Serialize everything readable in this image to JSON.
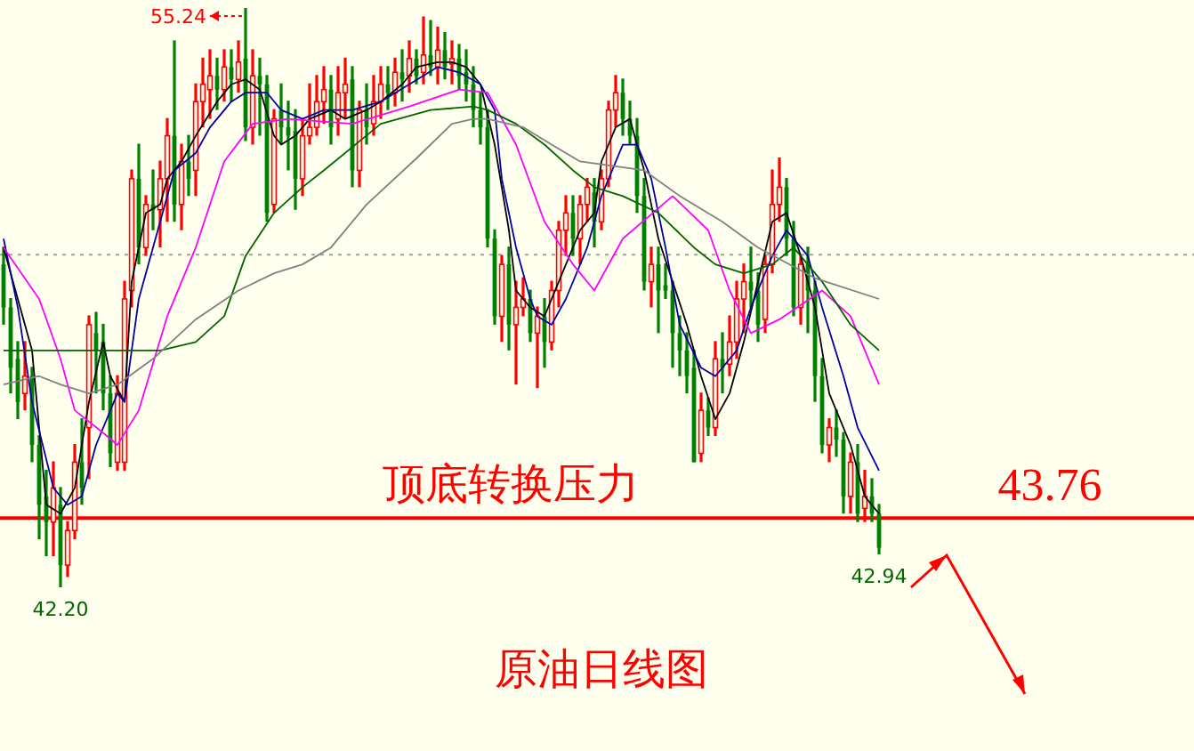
{
  "chart_data": {
    "type": "candlestick",
    "title": "原油日线图",
    "categories": [
      null,
      null,
      null,
      null,
      null,
      null,
      null,
      null,
      null,
      null,
      null,
      null,
      null,
      null,
      null,
      null,
      null,
      null,
      null,
      null,
      null,
      null,
      null,
      null,
      null,
      null,
      null,
      null,
      null,
      null,
      null,
      null,
      null,
      null,
      null,
      null,
      null,
      null,
      null,
      null,
      null,
      null,
      null,
      null,
      null,
      null,
      null,
      null,
      null,
      null,
      null,
      null,
      null,
      null,
      null,
      null,
      null,
      null,
      null,
      null,
      null,
      null,
      null,
      null,
      null,
      null,
      null,
      null,
      null,
      null,
      null,
      null,
      null,
      null,
      null,
      null,
      null,
      null,
      null,
      null,
      null,
      null,
      null,
      null,
      null,
      null,
      null,
      null,
      null,
      null,
      null,
      null,
      null,
      null,
      null,
      null,
      null,
      null,
      null,
      null,
      null,
      null,
      null,
      null,
      null,
      null,
      null,
      null,
      null,
      null,
      null,
      null,
      null,
      null,
      null,
      null,
      null,
      null,
      null,
      null,
      null,
      null,
      null,
      null
    ],
    "ohlc": [
      [
        49.48,
        49.86,
        48.12,
        48.51
      ],
      [
        48.51,
        48.7,
        46.57,
        47.15
      ],
      [
        47.35,
        47.73,
        45.99,
        46.38
      ],
      [
        46.57,
        47.73,
        46.19,
        46.96
      ],
      [
        46.96,
        47.15,
        45.02,
        45.41
      ],
      [
        45.41,
        45.61,
        43.28,
        44.06
      ],
      [
        44.25,
        44.83,
        42.9,
        43.67
      ],
      [
        43.67,
        45.02,
        42.9,
        44.44
      ],
      [
        44.06,
        44.44,
        42.2,
        42.7
      ],
      [
        42.7,
        43.67,
        42.43,
        43.48
      ],
      [
        43.48,
        45.41,
        43.28,
        45.02
      ],
      [
        45.02,
        45.99,
        44.06,
        44.44
      ],
      [
        45.8,
        48.31,
        44.64,
        48.12
      ],
      [
        47.93,
        48.39,
        46.57,
        47.54
      ],
      [
        47.73,
        48.12,
        46.19,
        46.57
      ],
      [
        46.57,
        46.96,
        44.91,
        45.22
      ],
      [
        45.02,
        46.96,
        44.83,
        46.57
      ],
      [
        45.02,
        49.09,
        44.83,
        48.7
      ],
      [
        48.89,
        51.6,
        48.51,
        51.41
      ],
      [
        51.41,
        52.18,
        49.48,
        49.86
      ],
      [
        49.86,
        51.02,
        49.67,
        50.83
      ],
      [
        50.83,
        51.6,
        50.25,
        50.71
      ],
      [
        50.71,
        51.8,
        49.86,
        51.41
      ],
      [
        51.41,
        52.76,
        50.44,
        52.38
      ],
      [
        52.38,
        54.51,
        50.44,
        50.83
      ],
      [
        50.83,
        52.18,
        50.25,
        51.8
      ],
      [
        51.8,
        52.38,
        51.02,
        51.41
      ],
      [
        51.6,
        53.54,
        51.02,
        53.15
      ],
      [
        53.15,
        54.12,
        52.57,
        53.54
      ],
      [
        53.42,
        54.31,
        52.76,
        53.73
      ],
      [
        53.73,
        54.12,
        52.96,
        53.42
      ],
      [
        53.42,
        54.31,
        53.15,
        53.93
      ],
      [
        53.93,
        54.31,
        53.15,
        53.65
      ],
      [
        53.65,
        54.51,
        53.35,
        54.04
      ],
      [
        54.12,
        55.24,
        52.26,
        52.57
      ],
      [
        52.57,
        54.31,
        52.18,
        53.73
      ],
      [
        53.73,
        54.12,
        52.38,
        53.54
      ],
      [
        53.54,
        53.73,
        50.44,
        50.64
      ],
      [
        50.83,
        52.96,
        50.64,
        52.76
      ],
      [
        52.96,
        53.54,
        52.18,
        52.57
      ],
      [
        52.57,
        53.15,
        51.6,
        52.38
      ],
      [
        52.49,
        52.96,
        50.71,
        51.41
      ],
      [
        51.41,
        52.76,
        51.02,
        52.38
      ],
      [
        52.38,
        53.54,
        52.18,
        52.57
      ],
      [
        52.57,
        53.73,
        52.38,
        53.15
      ],
      [
        53.15,
        53.93,
        52.65,
        53.42
      ],
      [
        53.42,
        53.73,
        52.18,
        52.57
      ],
      [
        52.76,
        53.93,
        52.38,
        53.35
      ],
      [
        53.35,
        54.12,
        52.76,
        53.54
      ],
      [
        53.65,
        53.93,
        51.22,
        51.6
      ],
      [
        51.6,
        53.15,
        51.22,
        52.96
      ],
      [
        52.96,
        53.54,
        52.18,
        52.57
      ],
      [
        52.65,
        53.73,
        52.38,
        53.15
      ],
      [
        53.15,
        53.93,
        52.76,
        53.54
      ],
      [
        53.54,
        53.93,
        52.96,
        53.35
      ],
      [
        53.35,
        54.12,
        53.04,
        53.81
      ],
      [
        53.81,
        54.31,
        53.15,
        53.65
      ],
      [
        53.73,
        54.51,
        53.35,
        54.12
      ],
      [
        54.12,
        54.31,
        53.54,
        53.73
      ],
      [
        53.81,
        55.05,
        53.54,
        54.2
      ],
      [
        54.2,
        54.97,
        53.73,
        53.93
      ],
      [
        53.93,
        54.82,
        53.54,
        54.31
      ],
      [
        54.31,
        54.7,
        53.65,
        53.93
      ],
      [
        54.0,
        54.51,
        53.54,
        54.12
      ],
      [
        54.12,
        54.43,
        53.42,
        53.73
      ],
      [
        53.81,
        54.31,
        53.15,
        53.54
      ],
      [
        53.54,
        53.93,
        52.57,
        52.96
      ],
      [
        52.96,
        53.35,
        52.18,
        52.57
      ],
      [
        52.57,
        52.96,
        49.86,
        50.06
      ],
      [
        50.06,
        50.25,
        48.12,
        48.31
      ],
      [
        48.31,
        49.67,
        47.73,
        49.48
      ],
      [
        49.48,
        49.86,
        47.54,
        48.12
      ],
      [
        48.12,
        49.09,
        46.77,
        48.51
      ],
      [
        48.51,
        49.17,
        48.31,
        48.7
      ],
      [
        48.7,
        48.89,
        47.73,
        47.93
      ],
      [
        47.93,
        48.51,
        46.69,
        48.31
      ],
      [
        48.31,
        48.7,
        47.15,
        47.73
      ],
      [
        47.73,
        49.09,
        47.54,
        48.89
      ],
      [
        48.89,
        50.44,
        48.51,
        50.25
      ],
      [
        50.25,
        51.02,
        49.67,
        50.64
      ],
      [
        50.64,
        51.02,
        49.67,
        50.06
      ],
      [
        50.06,
        51.02,
        49.48,
        50.83
      ],
      [
        50.83,
        51.41,
        50.44,
        51.22
      ],
      [
        51.1,
        51.41,
        49.86,
        50.44
      ],
      [
        50.44,
        51.6,
        50.25,
        51.41
      ],
      [
        51.41,
        53.15,
        51.22,
        52.96
      ],
      [
        52.96,
        53.73,
        52.57,
        53.35
      ],
      [
        53.35,
        53.65,
        52.38,
        52.76
      ],
      [
        52.76,
        53.15,
        52.18,
        52.38
      ],
      [
        52.38,
        52.76,
        50.64,
        51.02
      ],
      [
        51.02,
        51.41,
        48.89,
        49.09
      ],
      [
        49.09,
        49.86,
        48.51,
        49.48
      ],
      [
        49.48,
        49.86,
        47.93,
        48.89
      ],
      [
        49.01,
        49.48,
        48.7,
        48.89
      ],
      [
        48.89,
        49.09,
        47.15,
        47.93
      ],
      [
        47.93,
        48.31,
        46.96,
        47.54
      ],
      [
        47.54,
        47.93,
        46.57,
        46.96
      ],
      [
        47.15,
        47.54,
        45.02,
        45.02
      ],
      [
        45.22,
        46.57,
        45.02,
        46.19
      ],
      [
        46.19,
        46.46,
        45.61,
        45.8
      ],
      [
        45.8,
        47.73,
        45.61,
        47.35
      ],
      [
        47.35,
        47.93,
        46.57,
        47.15
      ],
      [
        47.23,
        48.31,
        46.96,
        47.73
      ],
      [
        47.73,
        49.09,
        47.35,
        48.7
      ],
      [
        48.7,
        49.48,
        47.93,
        49.09
      ],
      [
        49.09,
        49.86,
        48.51,
        48.89
      ],
      [
        48.89,
        49.28,
        47.73,
        48.12
      ],
      [
        48.24,
        49.67,
        47.93,
        49.48
      ],
      [
        49.48,
        51.6,
        49.28,
        50.83
      ],
      [
        50.83,
        51.87,
        50.44,
        51.22
      ],
      [
        51.22,
        51.41,
        49.67,
        50.06
      ],
      [
        50.06,
        50.44,
        48.31,
        48.51
      ],
      [
        48.51,
        49.67,
        48.12,
        49.48
      ],
      [
        49.48,
        49.86,
        47.93,
        48.89
      ],
      [
        48.89,
        49.09,
        46.38,
        46.96
      ],
      [
        46.96,
        47.35,
        45.22,
        45.41
      ],
      [
        45.41,
        45.99,
        45.02,
        45.8
      ],
      [
        45.8,
        46.19,
        45.14,
        45.53
      ],
      [
        45.53,
        45.68,
        43.86,
        44.25
      ],
      [
        44.25,
        45.22,
        43.86,
        45.02
      ],
      [
        45.02,
        45.41,
        43.67,
        43.86
      ],
      [
        43.98,
        44.83,
        43.67,
        44.25
      ],
      [
        44.25,
        44.64,
        43.67,
        43.86
      ],
      [
        43.86,
        44.06,
        42.94,
        43.09
      ]
    ],
    "series": [
      {
        "type": "line",
        "color": "#000000",
        "values": [
          49.86,
          null,
          null,
          null,
          47.54,
          null,
          44.06,
          null,
          43.86,
          null,
          44.44,
          null,
          46.38,
          null,
          47.73,
          46.96,
          null,
          46.38,
          49.09,
          null,
          50.64,
          null,
          50.83,
          51.41,
          null,
          51.8,
          null,
          52.38,
          null,
          null,
          53.15,
          null,
          53.54,
          null,
          53.65,
          null,
          53.42,
          null,
          52.38,
          52.18,
          null,
          52.38,
          null,
          52.76,
          null,
          null,
          52.96,
          null,
          52.76,
          null,
          null,
          52.96,
          null,
          53.15,
          null,
          null,
          53.54,
          null,
          53.93,
          null,
          null,
          54.04,
          null,
          54.04,
          null,
          53.93,
          null,
          53.54,
          null,
          52.18,
          null,
          50.25,
          48.89,
          null,
          48.51,
          null,
          48.31,
          null,
          49.09,
          null,
          null,
          50.25,
          null,
          50.64,
          51.8,
          null,
          52.57,
          null,
          52.76,
          null,
          51.6,
          null,
          50.06,
          null,
          49.09,
          null,
          48.12,
          null,
          46.96,
          null,
          45.99,
          null,
          46.57,
          null,
          47.73,
          null,
          49.09,
          null,
          50.44,
          null,
          50.64,
          null,
          49.67,
          null,
          48.51,
          null,
          46.57,
          null,
          null,
          45.41,
          null,
          44.25,
          null,
          43.86
        ]
      },
      {
        "type": "line",
        "color": "#0000a0",
        "values": [
          50.06,
          null,
          48.51,
          null,
          46.38,
          null,
          null,
          44.44,
          null,
          44.06,
          null,
          44.25,
          null,
          45.41,
          null,
          null,
          46.57,
          46.38,
          null,
          48.7,
          null,
          null,
          50.44,
          null,
          51.6,
          null,
          null,
          51.99,
          null,
          52.57,
          null,
          null,
          53.15,
          null,
          53.35,
          null,
          null,
          53.35,
          null,
          52.96,
          null,
          null,
          52.76,
          null,
          null,
          52.96,
          null,
          null,
          null,
          52.96,
          null,
          null,
          null,
          53.15,
          null,
          null,
          null,
          53.54,
          null,
          null,
          null,
          53.93,
          null,
          null,
          53.81,
          null,
          null,
          53.54,
          null,
          52.96,
          51.41,
          null,
          49.86,
          null,
          48.7,
          48.31,
          null,
          48.12,
          null,
          48.7,
          null,
          null,
          49.86,
          null,
          51.02,
          null,
          null,
          52.18,
          null,
          52.18,
          null,
          51.41,
          null,
          49.86,
          null,
          48.12,
          null,
          null,
          47.15,
          null,
          46.96,
          null,
          null,
          47.54,
          null,
          48.51,
          null,
          null,
          49.67,
          null,
          50.25,
          null,
          null,
          49.67,
          null,
          48.51,
          null,
          null,
          46.96,
          null,
          45.8,
          null,
          null,
          44.83
        ]
      },
      {
        "type": "line",
        "color": "#ff00ff",
        "values": [
          49.86,
          null,
          null,
          null,
          null,
          48.7,
          null,
          null,
          47.35,
          null,
          46.19,
          null,
          null,
          null,
          45.68,
          null,
          45.41,
          null,
          null,
          46.19,
          null,
          null,
          null,
          48.31,
          null,
          null,
          null,
          49.86,
          null,
          null,
          null,
          51.8,
          null,
          null,
          null,
          52.65,
          null,
          null,
          null,
          null,
          52.76,
          null,
          null,
          null,
          null,
          null,
          null,
          null,
          null,
          52.65,
          null,
          null,
          null,
          null,
          null,
          null,
          null,
          53.04,
          null,
          null,
          null,
          null,
          null,
          null,
          53.42,
          null,
          null,
          null,
          53.35,
          null,
          null,
          null,
          52.18,
          null,
          null,
          null,
          50.44,
          null,
          null,
          null,
          49.48,
          null,
          null,
          48.89,
          null,
          null,
          null,
          50.06,
          null,
          null,
          null,
          null,
          null,
          null,
          51.02,
          null,
          null,
          null,
          null,
          50.25,
          null,
          null,
          48.89,
          null,
          null,
          47.93,
          null,
          null,
          null,
          48.24,
          null,
          null,
          null,
          null,
          null,
          48.89,
          null,
          null,
          null,
          48.31,
          null,
          null,
          null,
          46.77
        ]
      },
      {
        "type": "line",
        "color": "#006400",
        "values": [
          47.54,
          null,
          null,
          null,
          null,
          null,
          null,
          null,
          null,
          null,
          47.54,
          null,
          null,
          null,
          null,
          null,
          47.54,
          null,
          null,
          null,
          null,
          null,
          47.54,
          null,
          null,
          null,
          null,
          47.73,
          null,
          null,
          null,
          48.31,
          null,
          null,
          49.67,
          null,
          null,
          null,
          50.64,
          null,
          null,
          null,
          51.22,
          null,
          null,
          51.6,
          null,
          null,
          null,
          null,
          null,
          null,
          null,
          52.65,
          null,
          null,
          null,
          null,
          null,
          null,
          52.96,
          null,
          null,
          null,
          null,
          null,
          53.04,
          null,
          52.96,
          null,
          null,
          null,
          52.65,
          null,
          null,
          null,
          52.18,
          null,
          null,
          null,
          51.6,
          null,
          null,
          51.22,
          null,
          null,
          null,
          51.02,
          null,
          null,
          null,
          null,
          50.64,
          null,
          null,
          null,
          null,
          49.86,
          null,
          null,
          49.48,
          null,
          null,
          null,
          49.28,
          null,
          null,
          null,
          49.48,
          null,
          null,
          49.86,
          null,
          null,
          null,
          49.09,
          null,
          null,
          null,
          48.12,
          null,
          null,
          null,
          47.54
        ]
      },
      {
        "type": "line",
        "color": "#808080",
        "values": [
          46.77,
          null,
          null,
          null,
          null,
          46.96,
          null,
          null,
          46.77,
          null,
          null,
          null,
          46.57,
          null,
          null,
          null,
          46.77,
          null,
          null,
          null,
          null,
          47.35,
          null,
          null,
          null,
          null,
          null,
          48.24,
          null,
          null,
          null,
          null,
          null,
          48.89,
          null,
          null,
          null,
          null,
          49.28,
          null,
          null,
          null,
          49.48,
          null,
          null,
          null,
          49.86,
          null,
          null,
          null,
          null,
          50.83,
          null,
          null,
          null,
          null,
          null,
          null,
          51.87,
          null,
          null,
          null,
          null,
          52.65,
          null,
          null,
          52.76,
          null,
          52.76,
          null,
          null,
          null,
          null,
          52.57,
          null,
          null,
          null,
          52.18,
          null,
          null,
          null,
          51.8,
          null,
          null,
          null,
          null,
          null,
          null,
          null,
          null,
          51.6,
          null,
          null,
          null,
          null,
          51.02,
          null,
          null,
          null,
          null,
          null,
          50.44,
          null,
          null,
          null,
          null,
          49.86,
          null,
          null,
          null,
          null,
          null,
          null,
          null,
          49.17,
          null,
          null,
          null,
          null,
          null,
          null,
          null,
          null,
          48.7
        ]
      }
    ],
    "ref_lines": [
      {
        "axis": "y",
        "value": 43.76,
        "label": "43.76",
        "color": "#ff0000",
        "line_style": "solid"
      },
      {
        "axis": "y",
        "value": 49.7,
        "color": "#a0a0a0",
        "line_style": "dotted"
      }
    ],
    "annotations": [
      "55.24",
      {
        "text": "42.20",
        "y": 42.2
      },
      {
        "text": "42.94",
        "y": 42.94
      },
      "顶底转换压力"
    ]
  }
}
